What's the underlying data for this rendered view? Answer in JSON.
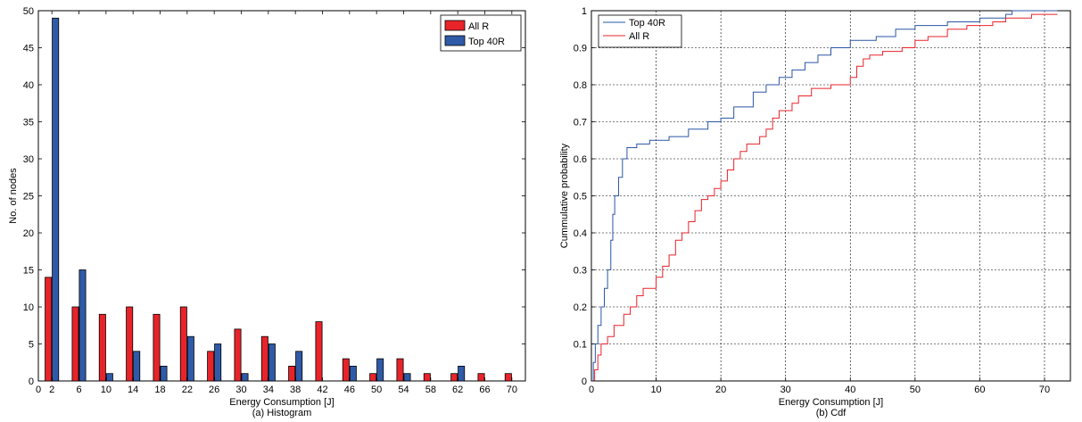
{
  "chart_data": [
    {
      "type": "bar",
      "caption": "(a) Histogram",
      "xlabel": "Energy Consumption [J]",
      "ylabel": "No. of nodes",
      "xlim": [
        0,
        72
      ],
      "ylim": [
        0,
        50
      ],
      "xticks": [
        0,
        2,
        6,
        10,
        14,
        18,
        22,
        26,
        30,
        34,
        38,
        42,
        46,
        50,
        54,
        58,
        62,
        66,
        70
      ],
      "yticks": [
        0,
        5,
        10,
        15,
        20,
        25,
        30,
        35,
        40,
        45,
        50
      ],
      "legend_position": "top-right",
      "grid": false,
      "x": [
        2,
        6,
        10,
        14,
        18,
        22,
        26,
        30,
        34,
        38,
        42,
        46,
        50,
        54,
        58,
        62,
        66,
        70
      ],
      "series": [
        {
          "name": "All R",
          "color": "#e8232a",
          "values": [
            14,
            10,
            9,
            10,
            9,
            10,
            4,
            7,
            6,
            2,
            8,
            3,
            1,
            3,
            1,
            1,
            1,
            1
          ]
        },
        {
          "name": "Top 40R",
          "color": "#2f5aa8",
          "values": [
            49,
            15,
            1,
            4,
            2,
            6,
            5,
            1,
            5,
            4,
            0,
            2,
            3,
            1,
            0,
            2,
            0,
            0
          ]
        }
      ]
    },
    {
      "type": "line",
      "step": true,
      "caption": "(b) Cdf",
      "xlabel": "Energy Consumption [J]",
      "ylabel": "Cummulative probability",
      "xlim": [
        0,
        74
      ],
      "ylim": [
        0,
        1
      ],
      "xticks": [
        0,
        10,
        20,
        30,
        40,
        50,
        60,
        70
      ],
      "yticks": [
        0,
        0.1,
        0.2,
        0.3,
        0.4,
        0.5,
        0.6,
        0.7,
        0.8,
        0.9,
        1
      ],
      "ytick_labels": [
        "0",
        "0.1",
        "0.2",
        "0.3",
        "0.4",
        "0.5",
        "0.6",
        "0.7",
        "0.8",
        "0.9",
        "1"
      ],
      "legend_position": "top-left",
      "grid": true,
      "series": [
        {
          "name": "Top 40R",
          "color": "#2a56a6",
          "points": [
            [
              0,
              0
            ],
            [
              0.3,
              0.05
            ],
            [
              0.6,
              0.1
            ],
            [
              1,
              0.15
            ],
            [
              1.5,
              0.2
            ],
            [
              2,
              0.25
            ],
            [
              2.5,
              0.3
            ],
            [
              3,
              0.38
            ],
            [
              3.3,
              0.45
            ],
            [
              3.6,
              0.5
            ],
            [
              4.2,
              0.55
            ],
            [
              4.8,
              0.6
            ],
            [
              5.5,
              0.63
            ],
            [
              7,
              0.64
            ],
            [
              9,
              0.65
            ],
            [
              12,
              0.66
            ],
            [
              15,
              0.68
            ],
            [
              18,
              0.7
            ],
            [
              20,
              0.71
            ],
            [
              22,
              0.74
            ],
            [
              25,
              0.78
            ],
            [
              27,
              0.8
            ],
            [
              29,
              0.82
            ],
            [
              31,
              0.84
            ],
            [
              33,
              0.86
            ],
            [
              35,
              0.88
            ],
            [
              37,
              0.9
            ],
            [
              40,
              0.92
            ],
            [
              44,
              0.93
            ],
            [
              47,
              0.95
            ],
            [
              50,
              0.96
            ],
            [
              55,
              0.97
            ],
            [
              60,
              0.98
            ],
            [
              64,
              0.99
            ],
            [
              65,
              1
            ],
            [
              72,
              1
            ]
          ]
        },
        {
          "name": "All R",
          "color": "#e8232a",
          "points": [
            [
              0,
              0
            ],
            [
              0.5,
              0.03
            ],
            [
              1,
              0.07
            ],
            [
              1.5,
              0.1
            ],
            [
              2.5,
              0.12
            ],
            [
              3.5,
              0.15
            ],
            [
              5,
              0.18
            ],
            [
              6,
              0.2
            ],
            [
              7,
              0.23
            ],
            [
              8,
              0.25
            ],
            [
              10,
              0.28
            ],
            [
              11,
              0.31
            ],
            [
              12,
              0.34
            ],
            [
              13,
              0.38
            ],
            [
              14,
              0.4
            ],
            [
              15,
              0.43
            ],
            [
              16,
              0.46
            ],
            [
              17,
              0.49
            ],
            [
              18,
              0.5
            ],
            [
              19,
              0.52
            ],
            [
              20,
              0.54
            ],
            [
              21,
              0.57
            ],
            [
              22,
              0.6
            ],
            [
              23,
              0.62
            ],
            [
              24,
              0.64
            ],
            [
              26,
              0.66
            ],
            [
              27,
              0.68
            ],
            [
              28,
              0.71
            ],
            [
              29,
              0.73
            ],
            [
              31,
              0.75
            ],
            [
              32,
              0.77
            ],
            [
              34,
              0.79
            ],
            [
              37,
              0.8
            ],
            [
              40,
              0.82
            ],
            [
              41,
              0.85
            ],
            [
              42,
              0.87
            ],
            [
              43,
              0.88
            ],
            [
              45,
              0.89
            ],
            [
              48,
              0.9
            ],
            [
              50,
              0.92
            ],
            [
              52,
              0.93
            ],
            [
              55,
              0.95
            ],
            [
              58,
              0.96
            ],
            [
              62,
              0.97
            ],
            [
              64,
              0.98
            ],
            [
              68,
              0.99
            ],
            [
              72,
              0.99
            ]
          ]
        }
      ]
    }
  ]
}
